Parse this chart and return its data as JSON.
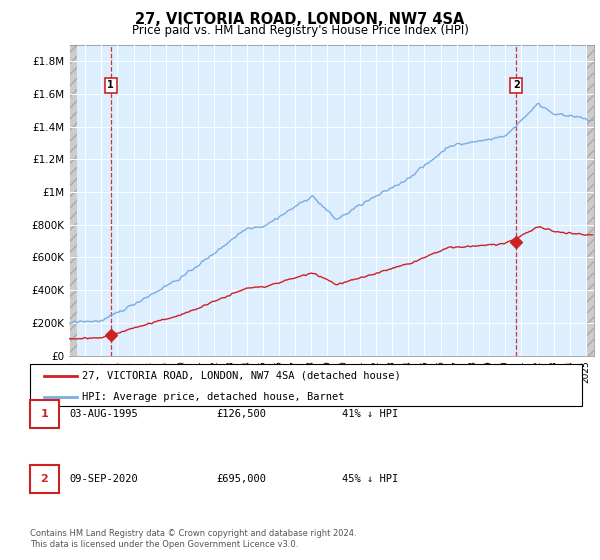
{
  "title": "27, VICTORIA ROAD, LONDON, NW7 4SA",
  "subtitle": "Price paid vs. HM Land Registry's House Price Index (HPI)",
  "ylim": [
    0,
    1900000
  ],
  "yticks": [
    0,
    200000,
    400000,
    600000,
    800000,
    1000000,
    1200000,
    1400000,
    1600000,
    1800000
  ],
  "ytick_labels": [
    "£0",
    "£200K",
    "£400K",
    "£600K",
    "£800K",
    "£1M",
    "£1.2M",
    "£1.4M",
    "£1.6M",
    "£1.8M"
  ],
  "hpi_color": "#7aade0",
  "price_color": "#cc2222",
  "annotation_box_color": "#cc2222",
  "background_plot": "#ddeeff",
  "grid_color": "#ffffff",
  "legend_label_price": "27, VICTORIA ROAD, LONDON, NW7 4SA (detached house)",
  "legend_label_hpi": "HPI: Average price, detached house, Barnet",
  "annotation1_date": "03-AUG-1995",
  "annotation1_price": "£126,500",
  "annotation1_pct": "41% ↓ HPI",
  "annotation2_date": "09-SEP-2020",
  "annotation2_price": "£695,000",
  "annotation2_pct": "45% ↓ HPI",
  "footnote": "Contains HM Land Registry data © Crown copyright and database right 2024.\nThis data is licensed under the Open Government Licence v3.0.",
  "sale1_year": 1995.583,
  "sale1_value": 126500,
  "sale2_year": 2020.69,
  "sale2_value": 695000,
  "xmin": 1993.0,
  "xmax": 2025.5
}
